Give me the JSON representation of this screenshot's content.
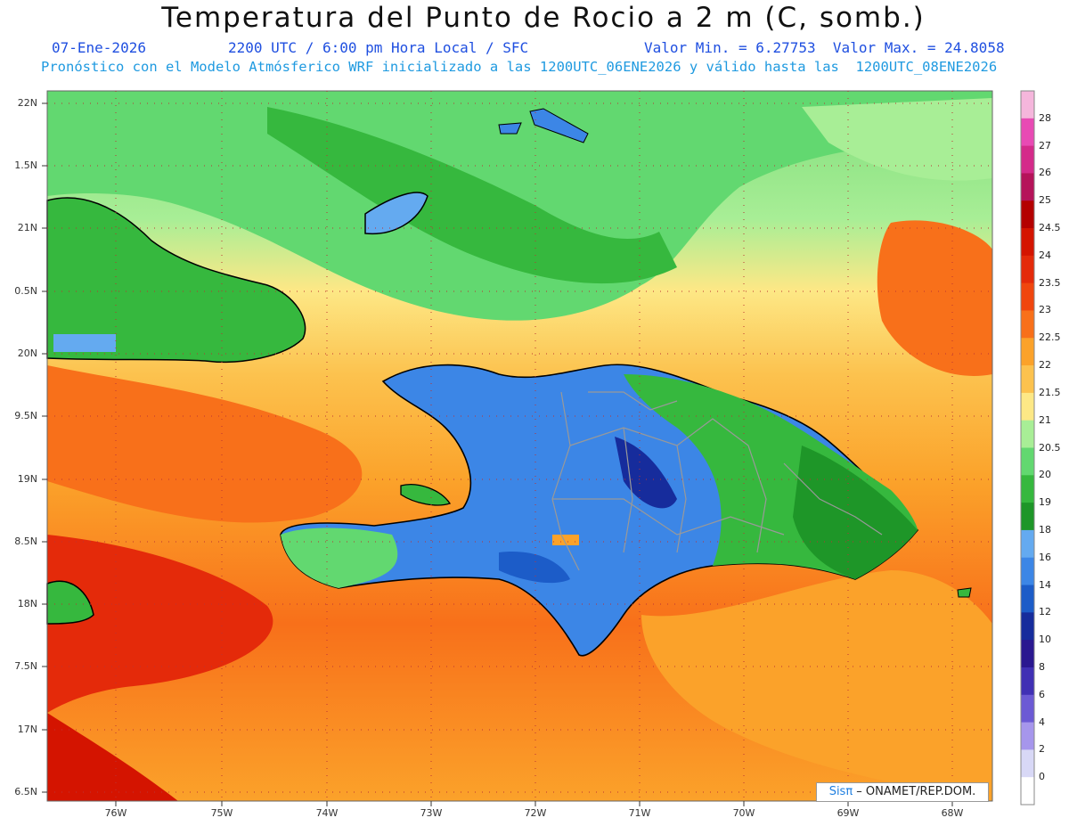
{
  "header": {
    "title": "Temperatura del Punto de Rocio a 2 m (C, somb.)",
    "date": "07-Ene-2026",
    "time": "2200 UTC / 6:00 pm Hora Local / SFC",
    "minmax": "Valor Min. = 6.27753  Valor Max. = 24.8058",
    "model_line": "Pronóstico con el Modelo Atmósferico WRF inicializado a las 1200UTC_06ENE2026 y válido hasta las  1200UTC_08ENE2026"
  },
  "axes": {
    "lat_labels": [
      "22N",
      "1.5N",
      "21N",
      "0.5N",
      "20N",
      "9.5N",
      "19N",
      "8.5N",
      "18N",
      "7.5N",
      "17N",
      "6.5N"
    ],
    "lon_labels": [
      "76W",
      "75W",
      "74W",
      "73W",
      "72W",
      "71W",
      "70W",
      "69W",
      "68W"
    ]
  },
  "colorbar": {
    "labels": [
      "28",
      "27",
      "26",
      "25",
      "24.5",
      "24",
      "23.5",
      "23",
      "22.5",
      "22",
      "21.5",
      "21",
      "20.5",
      "20",
      "19",
      "18",
      "16",
      "14",
      "12",
      "10",
      "8",
      "6",
      "4",
      "2",
      "0"
    ],
    "colors": [
      "#f5b6dc",
      "#e84ab4",
      "#d42a8a",
      "#b5135a",
      "#b40000",
      "#d41400",
      "#e42a0a",
      "#f0460e",
      "#f8701a",
      "#fba22a",
      "#fcc24e",
      "#fde886",
      "#a8ee96",
      "#62d870",
      "#36b83e",
      "#1e9628",
      "#64aaf0",
      "#3c86e6",
      "#1c5cc8",
      "#162c9c",
      "#2a1890",
      "#4030b4",
      "#6c5ad4",
      "#a696ec",
      "#d8d8f6",
      "#ffffff"
    ]
  },
  "credit": {
    "sis": "Sisπ",
    "rest": " – ONAMET/REP.DOM."
  }
}
